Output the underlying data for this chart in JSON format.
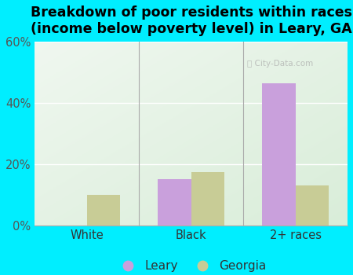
{
  "title": "Breakdown of poor residents within races\n(income below poverty level) in Leary, GA",
  "categories": [
    "White",
    "Black",
    "2+ races"
  ],
  "leary_values": [
    0,
    15.0,
    46.5
  ],
  "georgia_values": [
    10.0,
    17.5,
    13.0
  ],
  "leary_color": "#c9a0dc",
  "georgia_color": "#c8cc96",
  "background_outer": "#00eeff",
  "background_inner_topleft": "#f0f8ee",
  "background_inner_botright": "#d8edd8",
  "ylim": [
    0,
    60
  ],
  "yticks": [
    0,
    20,
    40,
    60
  ],
  "ytick_labels": [
    "0%",
    "20%",
    "40%",
    "60%"
  ],
  "bar_width": 0.32,
  "title_fontsize": 12.5,
  "tick_fontsize": 10.5,
  "legend_fontsize": 11,
  "watermark": "City-Data.com"
}
